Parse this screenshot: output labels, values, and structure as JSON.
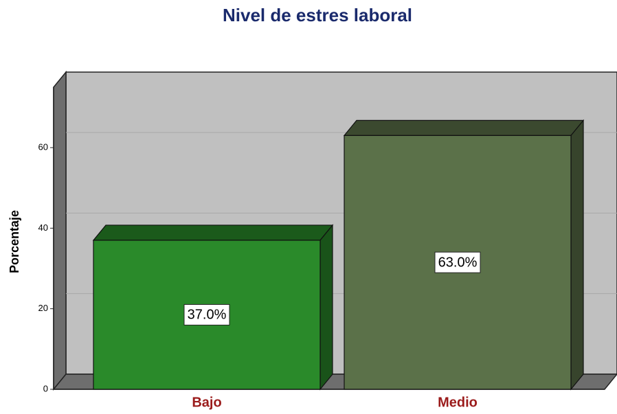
{
  "chart_data": {
    "type": "bar3d",
    "title": "Nivel de estres laboral",
    "ylabel": "Porcentaje",
    "categories": [
      "Bajo",
      "Medio"
    ],
    "values": [
      37,
      63
    ],
    "value_labels": [
      "37.0%",
      "63.0%"
    ],
    "colors": [
      "#2a8a2a",
      "#5b7149"
    ],
    "ylim": [
      0,
      75
    ],
    "yticks": [
      0,
      20,
      40,
      60
    ],
    "grid": true
  }
}
